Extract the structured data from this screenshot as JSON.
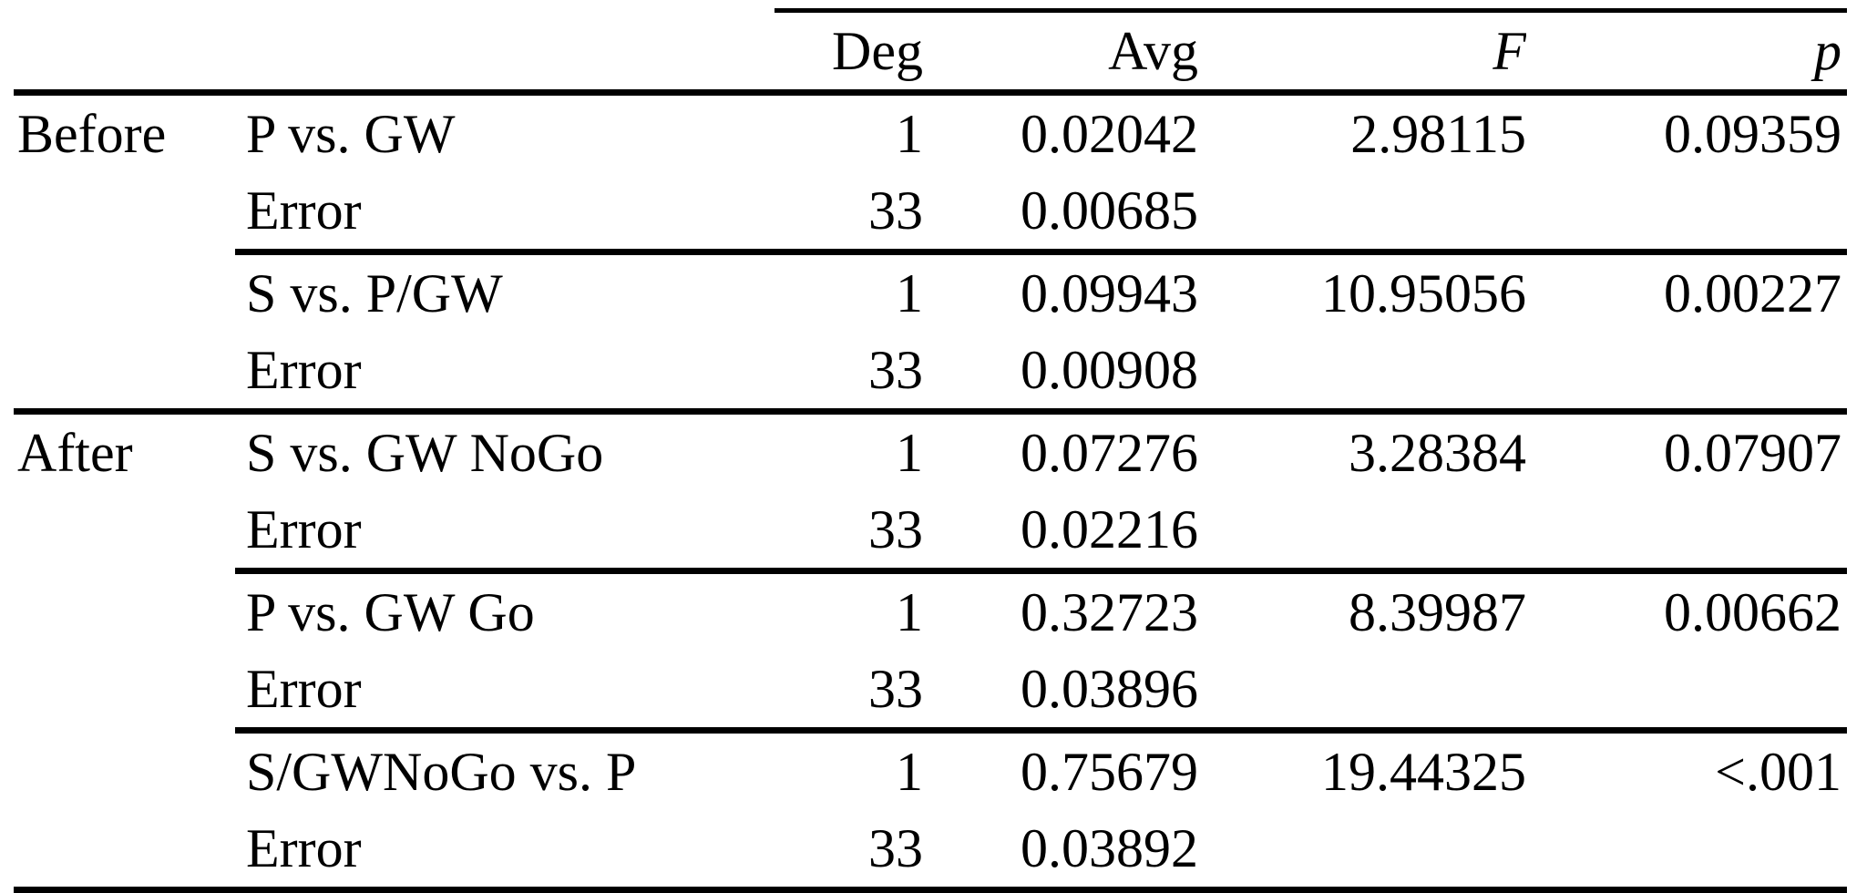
{
  "colors": {
    "text": "#000000",
    "background": "#ffffff",
    "rule": "#000000"
  },
  "table": {
    "headers": {
      "group": "",
      "contrast": "",
      "deg": "Deg",
      "avg": "Avg",
      "f": "F",
      "p": "p"
    },
    "rows": [
      {
        "group": "Before",
        "contrast": "P vs. GW",
        "deg": "1",
        "avg": "0.02042",
        "f": "2.98115",
        "p": "0.09359"
      },
      {
        "group": "",
        "contrast": "Error",
        "deg": "33",
        "avg": "0.00685",
        "f": "",
        "p": ""
      },
      {
        "group": "",
        "contrast": "S vs. P/GW",
        "deg": "1",
        "avg": "0.09943",
        "f": "10.95056",
        "p": "0.00227"
      },
      {
        "group": "",
        "contrast": "Error",
        "deg": "33",
        "avg": "0.00908",
        "f": "",
        "p": ""
      },
      {
        "group": "After",
        "contrast": "S vs. GW NoGo",
        "deg": "1",
        "avg": "0.07276",
        "f": "3.28384",
        "p": "0.07907"
      },
      {
        "group": "",
        "contrast": "Error",
        "deg": "33",
        "avg": "0.02216",
        "f": "",
        "p": ""
      },
      {
        "group": "",
        "contrast": "P vs. GW Go",
        "deg": "1",
        "avg": "0.32723",
        "f": "8.39987",
        "p": "0.00662"
      },
      {
        "group": "",
        "contrast": "Error",
        "deg": "33",
        "avg": "0.03896",
        "f": "",
        "p": ""
      },
      {
        "group": "",
        "contrast": "S/GWNoGo vs. P",
        "deg": "1",
        "avg": "0.75679",
        "f": "19.44325",
        "p": "<.001"
      },
      {
        "group": "",
        "contrast": "Error",
        "deg": "33",
        "avg": "0.03892",
        "f": "",
        "p": ""
      }
    ]
  }
}
